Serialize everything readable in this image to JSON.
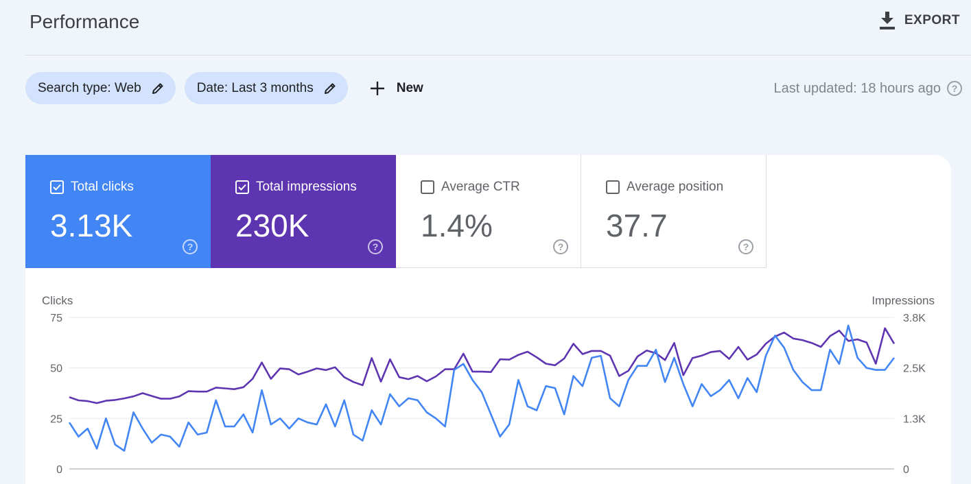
{
  "header": {
    "title": "Performance",
    "export_label": "EXPORT"
  },
  "filters": {
    "search_type": "Search type: Web",
    "date": "Date: Last 3 months",
    "new_label": "New"
  },
  "last_updated": "Last updated: 18 hours ago",
  "metrics": [
    {
      "label": "Total clicks",
      "value": "3.13K",
      "checked": true
    },
    {
      "label": "Total impressions",
      "value": "230K",
      "checked": true
    },
    {
      "label": "Average CTR",
      "value": "1.4%",
      "checked": false
    },
    {
      "label": "Average position",
      "value": "37.7",
      "checked": false
    }
  ],
  "colors": {
    "clicks": "#4285f4",
    "impressions": "#5e35b1",
    "grid": "#e8eaed"
  },
  "chart_data": {
    "type": "line",
    "left_axis_title": "Clicks",
    "right_axis_title": "Impressions",
    "left_ticks": [
      "75",
      "50",
      "25",
      "0"
    ],
    "right_ticks": [
      "3.8K",
      "2.5K",
      "1.3K",
      "0"
    ],
    "ylim_left": [
      0,
      75
    ],
    "ylim_right": [
      0,
      3800
    ],
    "series": [
      {
        "name": "Clicks",
        "axis": "left",
        "values": [
          23,
          16,
          20,
          10,
          25,
          12,
          9,
          28,
          20,
          13,
          17,
          16,
          11,
          23,
          17,
          18,
          34,
          21,
          21,
          27,
          18,
          39,
          22,
          25,
          20,
          25,
          23,
          22,
          32,
          21,
          34,
          17,
          14,
          29,
          22,
          37,
          31,
          35,
          34,
          28,
          25,
          21,
          49,
          52,
          44,
          38,
          27,
          16,
          22,
          44,
          31,
          29,
          41,
          40,
          27,
          46,
          41,
          55,
          56,
          35,
          31,
          44,
          51,
          51,
          59,
          43,
          55,
          42,
          31,
          42,
          36,
          39,
          44,
          35,
          45,
          38,
          56,
          66,
          60,
          49,
          43,
          39,
          39,
          59,
          52,
          71,
          55,
          50,
          49,
          49,
          55
        ]
      },
      {
        "name": "Impressions",
        "axis": "right",
        "values": [
          1800,
          1720,
          1700,
          1650,
          1710,
          1730,
          1770,
          1820,
          1900,
          1830,
          1760,
          1760,
          1820,
          1950,
          1940,
          1940,
          2040,
          2020,
          2000,
          2050,
          2260,
          2670,
          2260,
          2520,
          2500,
          2370,
          2440,
          2520,
          2480,
          2550,
          2300,
          2180,
          2100,
          2780,
          2190,
          2750,
          2300,
          2250,
          2330,
          2200,
          2320,
          2500,
          2500,
          2890,
          2440,
          2440,
          2430,
          2750,
          2740,
          2860,
          2940,
          2800,
          2640,
          2600,
          2770,
          3140,
          2880,
          2960,
          2960,
          2840,
          2330,
          2460,
          2820,
          2970,
          2900,
          2730,
          3160,
          2350,
          2780,
          2840,
          2930,
          2960,
          2760,
          3060,
          2740,
          2870,
          3140,
          3320,
          3420,
          3270,
          3230,
          3160,
          3060,
          3330,
          3470,
          3210,
          3250,
          3170,
          2640,
          3530,
          3140
        ]
      }
    ]
  }
}
